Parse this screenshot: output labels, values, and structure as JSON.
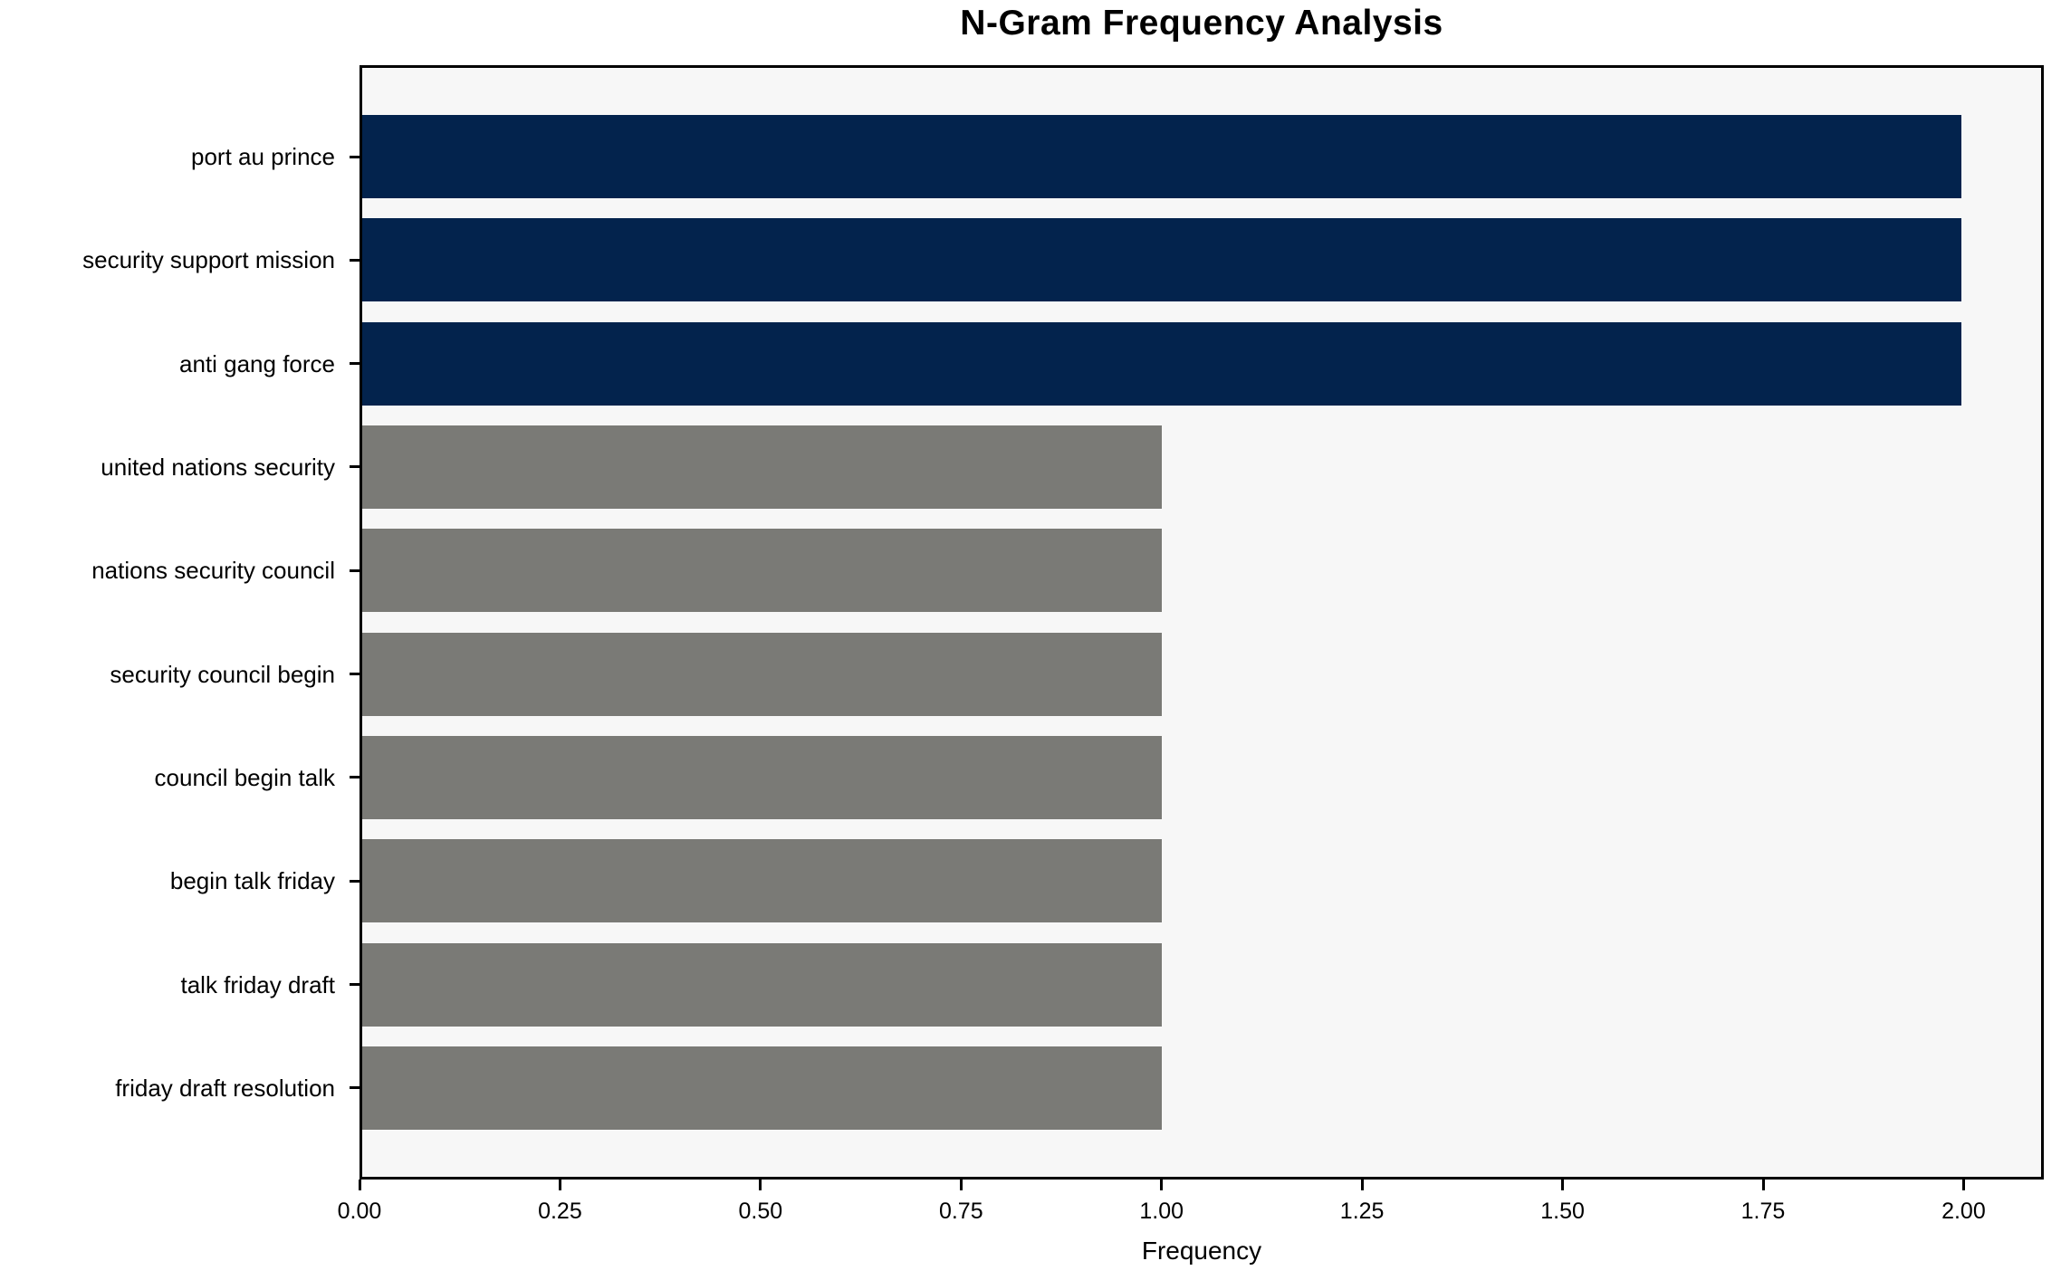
{
  "title": "N-Gram Frequency Analysis",
  "chart_data": {
    "type": "bar",
    "orientation": "horizontal",
    "title": "N-Gram Frequency Analysis",
    "xlabel": "Frequency",
    "ylabel": "",
    "categories": [
      "port au prince",
      "security support mission",
      "anti gang force",
      "united nations security",
      "nations security council",
      "security council begin",
      "council begin talk",
      "begin talk friday",
      "talk friday draft",
      "friday draft resolution"
    ],
    "values": [
      2,
      2,
      2,
      1,
      1,
      1,
      1,
      1,
      1,
      1
    ],
    "bar_colors": [
      "#03234d",
      "#03234d",
      "#03234d",
      "#7a7a76",
      "#7a7a76",
      "#7a7a76",
      "#7a7a76",
      "#7a7a76",
      "#7a7a76",
      "#7a7a76"
    ],
    "xlim": [
      0,
      2.1
    ],
    "xtick_labels": [
      "0.00",
      "0.25",
      "0.50",
      "0.75",
      "1.00",
      "1.25",
      "1.50",
      "1.75",
      "2.00"
    ],
    "xtick_values": [
      0,
      0.25,
      0.5,
      0.75,
      1.0,
      1.25,
      1.5,
      1.75,
      2.0
    ],
    "grid": false,
    "legend": "none",
    "colors": {
      "highlight_bar": "#03234d",
      "default_bar": "#7a7a76",
      "plot_background": "#f7f7f7",
      "figure_background": "#ffffff",
      "spine": "#000000",
      "text": "#000000"
    }
  }
}
